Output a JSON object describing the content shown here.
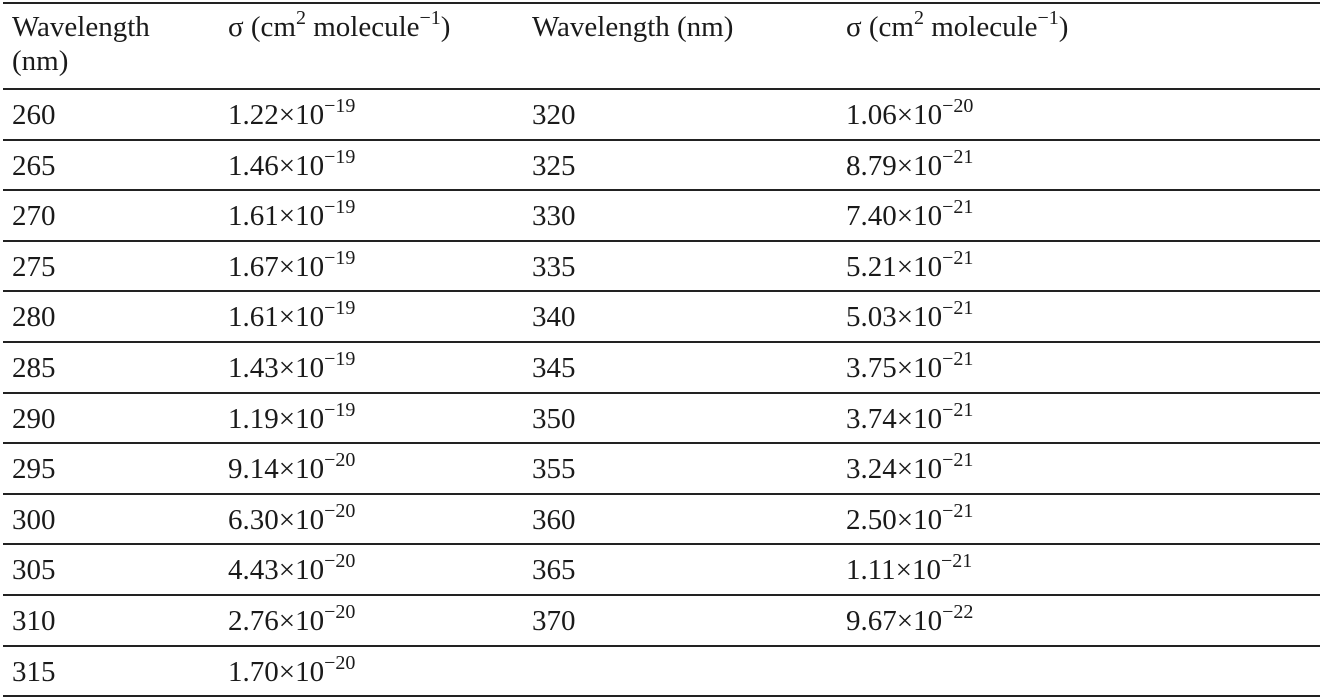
{
  "table": {
    "header": [
      [
        "Wavelength (nm)"
      ],
      [
        "σ (cm",
        "2",
        " molecule",
        "−1",
        ")"
      ],
      [
        "Wavelength (nm)"
      ],
      [
        "σ (cm",
        "2",
        " molecule",
        "−1",
        ")"
      ]
    ],
    "rows": [
      [
        [
          "260"
        ],
        [
          "1.22×10",
          "−19"
        ],
        [
          "320"
        ],
        [
          "1.06×10",
          "−20"
        ]
      ],
      [
        [
          "265"
        ],
        [
          "1.46×10",
          "−19"
        ],
        [
          "325"
        ],
        [
          "8.79×10",
          "−21"
        ]
      ],
      [
        [
          "270"
        ],
        [
          "1.61×10",
          "−19"
        ],
        [
          "330"
        ],
        [
          "7.40×10",
          "−21"
        ]
      ],
      [
        [
          "275"
        ],
        [
          "1.67×10",
          "−19"
        ],
        [
          "335"
        ],
        [
          "5.21×10",
          "−21"
        ]
      ],
      [
        [
          "280"
        ],
        [
          "1.61×10",
          "−19"
        ],
        [
          "340"
        ],
        [
          "5.03×10",
          "−21"
        ]
      ],
      [
        [
          "285"
        ],
        [
          "1.43×10",
          "−19"
        ],
        [
          "345"
        ],
        [
          "3.75×10",
          "−21"
        ]
      ],
      [
        [
          "290"
        ],
        [
          "1.19×10",
          "−19"
        ],
        [
          "350"
        ],
        [
          "3.74×10",
          "−21"
        ]
      ],
      [
        [
          "295"
        ],
        [
          "9.14×10",
          "−20"
        ],
        [
          "355"
        ],
        [
          "3.24×10",
          "−21"
        ]
      ],
      [
        [
          "300"
        ],
        [
          "6.30×10",
          "−20"
        ],
        [
          "360"
        ],
        [
          "2.50×10",
          "−21"
        ]
      ],
      [
        [
          "305"
        ],
        [
          "4.43×10",
          "−20"
        ],
        [
          "365"
        ],
        [
          "1.11×10",
          "−21"
        ]
      ],
      [
        [
          "310"
        ],
        [
          "2.76×10",
          "−20"
        ],
        [
          "370"
        ],
        [
          "9.67×10",
          "−22"
        ]
      ],
      [
        [
          "315"
        ],
        [
          "1.70×10",
          "−20"
        ],
        null,
        null
      ]
    ]
  }
}
